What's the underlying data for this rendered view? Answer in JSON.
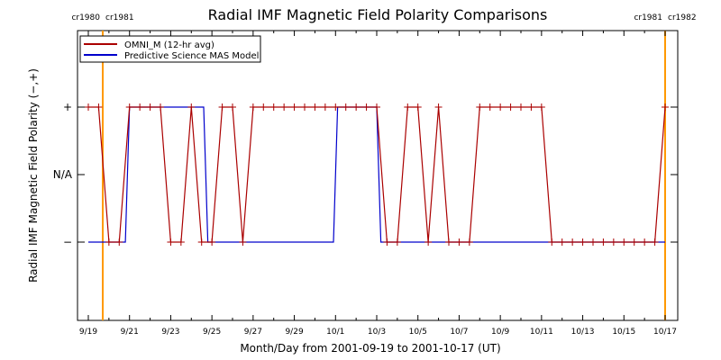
{
  "chart_data": {
    "type": "line",
    "title": "Radial IMF Magnetic Field Polarity Comparisons",
    "xlabel": "Month/Day from 2001-09-19 to 2001-10-17 (UT)",
    "ylabel": "Radial IMF Magnetic Field Polarity (−,+)",
    "x_unit": "day",
    "xlim": [
      0,
      28
    ],
    "ylim": [
      -1.5,
      1.5
    ],
    "x_ticks": [
      {
        "x": 0,
        "label": "9/19"
      },
      {
        "x": 2,
        "label": "9/21"
      },
      {
        "x": 4,
        "label": "9/23"
      },
      {
        "x": 6,
        "label": "9/25"
      },
      {
        "x": 8,
        "label": "9/27"
      },
      {
        "x": 10,
        "label": "9/29"
      },
      {
        "x": 12,
        "label": "10/1"
      },
      {
        "x": 14,
        "label": "10/3"
      },
      {
        "x": 16,
        "label": "10/5"
      },
      {
        "x": 18,
        "label": "10/7"
      },
      {
        "x": 20,
        "label": "10/9"
      },
      {
        "x": 22,
        "label": "10/11"
      },
      {
        "x": 24,
        "label": "10/13"
      },
      {
        "x": 26,
        "label": "10/15"
      },
      {
        "x": 28,
        "label": "10/17"
      }
    ],
    "y_ticks": [
      {
        "y": 1,
        "label": "+"
      },
      {
        "y": 0,
        "label": "N/A"
      },
      {
        "y": -1,
        "label": "−"
      }
    ],
    "vlines": [
      {
        "x": 0.7,
        "color": "#ff9900",
        "label_left": "cr1980",
        "label_right": "cr1981"
      },
      {
        "x": 28.0,
        "color": "#ff9900",
        "label_left": "cr1981",
        "label_right": "cr1982"
      }
    ],
    "legend_position": "top-left",
    "series": [
      {
        "name": "OMNI_M (12-hr avg)",
        "color": "#aa0000",
        "markers": "plus",
        "points": [
          [
            0.0,
            1
          ],
          [
            0.5,
            1
          ],
          [
            1.0,
            -1
          ],
          [
            1.5,
            -1
          ],
          [
            2.0,
            1
          ],
          [
            2.5,
            1
          ],
          [
            3.0,
            1
          ],
          [
            3.5,
            1
          ],
          [
            4.0,
            -1
          ],
          [
            4.5,
            -1
          ],
          [
            5.0,
            1
          ],
          [
            5.5,
            -1
          ],
          [
            6.0,
            -1
          ],
          [
            6.5,
            1
          ],
          [
            7.0,
            1
          ],
          [
            7.5,
            -1
          ],
          [
            8.0,
            1
          ],
          [
            8.5,
            1
          ],
          [
            9.0,
            1
          ],
          [
            9.5,
            1
          ],
          [
            10.0,
            1
          ],
          [
            10.5,
            1
          ],
          [
            11.0,
            1
          ],
          [
            11.5,
            1
          ],
          [
            12.0,
            1
          ],
          [
            12.5,
            1
          ],
          [
            13.0,
            1
          ],
          [
            13.5,
            1
          ],
          [
            14.0,
            1
          ],
          [
            14.5,
            -1
          ],
          [
            15.0,
            -1
          ],
          [
            15.5,
            1
          ],
          [
            16.0,
            1
          ],
          [
            16.5,
            -1
          ],
          [
            17.0,
            1
          ],
          [
            17.5,
            -1
          ],
          [
            18.0,
            -1
          ],
          [
            18.5,
            -1
          ],
          [
            19.0,
            1
          ],
          [
            19.5,
            1
          ],
          [
            20.0,
            1
          ],
          [
            20.5,
            1
          ],
          [
            21.0,
            1
          ],
          [
            21.5,
            1
          ],
          [
            22.0,
            1
          ],
          [
            22.5,
            -1
          ],
          [
            23.0,
            -1
          ],
          [
            23.5,
            -1
          ],
          [
            24.0,
            -1
          ],
          [
            24.5,
            -1
          ],
          [
            25.0,
            -1
          ],
          [
            25.5,
            -1
          ],
          [
            26.0,
            -1
          ],
          [
            26.5,
            -1
          ],
          [
            27.0,
            -1
          ],
          [
            27.5,
            -1
          ],
          [
            28.0,
            1
          ]
        ]
      },
      {
        "name": "Predictive Science MAS Model",
        "color": "#0000cc",
        "markers": "none",
        "points": [
          [
            0.0,
            -1
          ],
          [
            1.8,
            -1
          ],
          [
            2.0,
            1
          ],
          [
            5.6,
            1
          ],
          [
            5.8,
            -1
          ],
          [
            11.9,
            -1
          ],
          [
            12.1,
            1
          ],
          [
            14.0,
            1
          ],
          [
            14.2,
            -1
          ],
          [
            28.0,
            -1
          ]
        ]
      }
    ]
  }
}
